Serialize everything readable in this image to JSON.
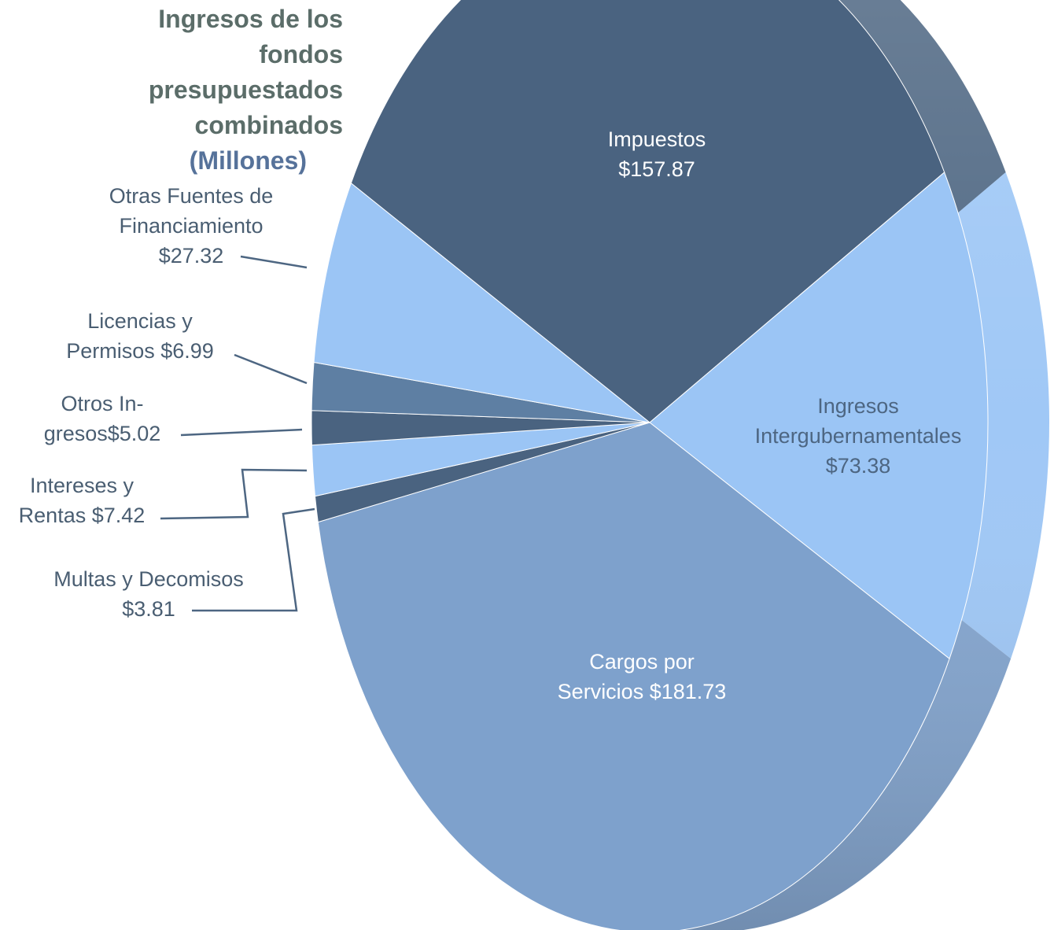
{
  "chart_data": {
    "type": "pie",
    "title": "Ingresos de los fondos presupuestados combinados",
    "subtitle": "(Millones)",
    "categories": [
      "Impuestos",
      "Ingresos Intergubernamentales",
      "Cargos por Servicios",
      "Multas y Decomisos",
      "Intereses y Rentas",
      "Otros In-gresos",
      "Licencias y Permisos",
      "Otras Fuentes de Financiamiento"
    ],
    "values": [
      157.87,
      73.38,
      181.73,
      3.81,
      7.42,
      5.02,
      6.99,
      27.32
    ],
    "value_labels": [
      "$157.87",
      "$73.38",
      "$181.73",
      "$3.81",
      "$7.42",
      "$5.02",
      "$6.99",
      "$27.32"
    ],
    "colors": [
      "#4a6380",
      "#9bc5f5",
      "#7ea1cc",
      "#4a6380",
      "#9bc5f5",
      "#4a6380",
      "#5e7fa3",
      "#9bc5f5"
    ]
  }
}
